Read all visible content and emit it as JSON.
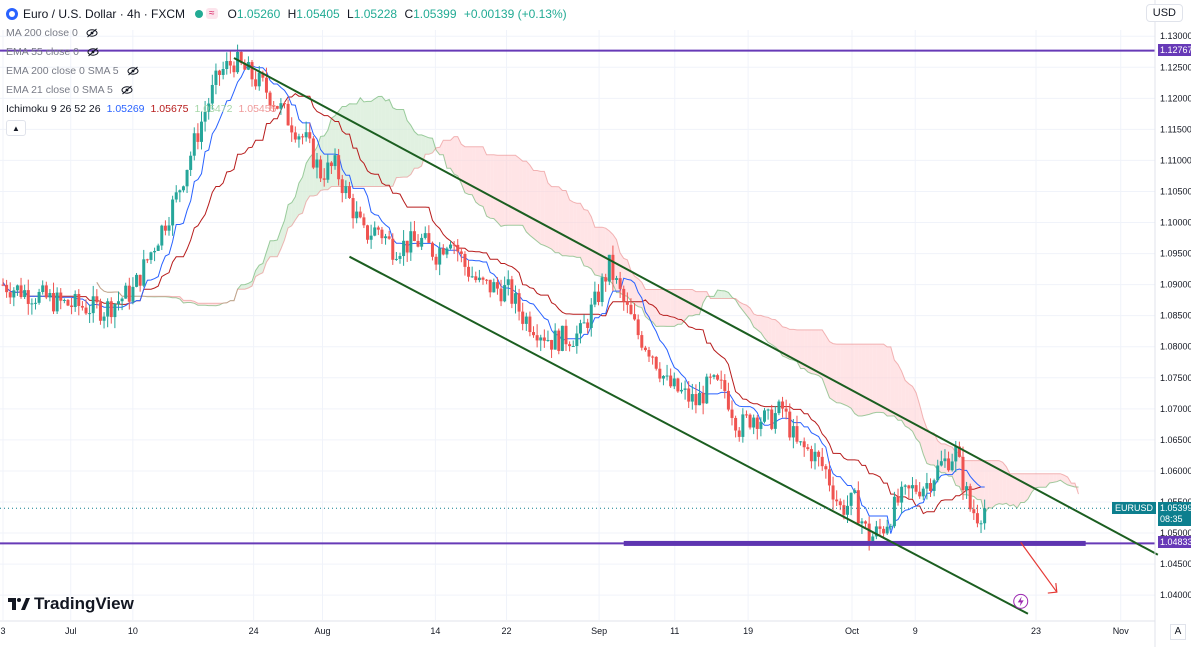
{
  "header": {
    "symbol_title": "Euro / U.S. Dollar · 4h · FXCM",
    "ohlc": {
      "o_label": "O",
      "o": "1.05260",
      "h_label": "H",
      "h": "1.05405",
      "l_label": "L",
      "l": "1.05228",
      "c_label": "C",
      "c": "1.05399",
      "change": "+0.00139 (+0.13%)"
    }
  },
  "indicators": {
    "ma200": "MA 200 close 0",
    "ema55": "EMA 55 close 0",
    "ema200": "EMA 200 close 0 SMA 5",
    "ema21": "EMA 21 close 0 SMA 5",
    "ichimoku": {
      "label": "Ichimoku 9 26 52 26",
      "values": [
        "1.05269",
        "1.05675",
        "1.05472",
        "1.05455"
      ]
    }
  },
  "currency_button": "USD",
  "brand": "TradingView",
  "symbol_badge": "EURUSD",
  "a_button": "A",
  "colors": {
    "tenkan": "#2962ff",
    "kijun": "#b71c1c",
    "span_a": "#43a047",
    "span_b": "#e57373",
    "cloud_bull": "#c8e6c9",
    "cloud_bear": "#ffcdd2",
    "up_candle": "#26a69a",
    "down_candle": "#ef5350",
    "channel": "#1b5e20",
    "horizontal": "#673ab7",
    "arrow": "#e53935"
  },
  "chart_data": {
    "type": "candlestick",
    "instrument": "EURUSD",
    "timeframe": "4h",
    "ylim": [
      1.036,
      1.131
    ],
    "y_ticks": [
      "1.13000",
      "1.12500",
      "1.12000",
      "1.11500",
      "1.11000",
      "1.10500",
      "1.10000",
      "1.09500",
      "1.09000",
      "1.08500",
      "1.08000",
      "1.07500",
      "1.07000",
      "1.06500",
      "1.06000",
      "1.05500",
      "1.05000",
      "1.04500",
      "1.04000"
    ],
    "x_ticks": [
      "3",
      "Jul",
      "10",
      "24",
      "Aug",
      "14",
      "22",
      "Sep",
      "11",
      "19",
      "Oct",
      "9",
      "23",
      "Nov"
    ],
    "price_path": [
      [
        0,
        1.09
      ],
      [
        4,
        1.087
      ],
      [
        7,
        1.086
      ],
      [
        9,
        1.089
      ],
      [
        10,
        1.094
      ],
      [
        12,
        1.104
      ],
      [
        14,
        1.118
      ],
      [
        15,
        1.124
      ],
      [
        16,
        1.126
      ],
      [
        18,
        1.122
      ],
      [
        19,
        1.119
      ],
      [
        21,
        1.113
      ],
      [
        22,
        1.108
      ],
      [
        23,
        1.109
      ],
      [
        25,
        1.098
      ],
      [
        26,
        1.099
      ],
      [
        27,
        1.096
      ],
      [
        29,
        1.097
      ],
      [
        30,
        1.095
      ],
      [
        31,
        1.098
      ],
      [
        32,
        1.093
      ],
      [
        33,
        1.09
      ],
      [
        35,
        1.089
      ],
      [
        36,
        1.085
      ],
      [
        38,
        1.081
      ],
      [
        40,
        1.082
      ],
      [
        41,
        1.087
      ],
      [
        42,
        1.093
      ],
      [
        43,
        1.087
      ],
      [
        44,
        1.082
      ],
      [
        45,
        1.079
      ],
      [
        46,
        1.074
      ],
      [
        48,
        1.071
      ],
      [
        49,
        1.074
      ],
      [
        50,
        1.073
      ],
      [
        51,
        1.067
      ],
      [
        52,
        1.069
      ],
      [
        53,
        1.068
      ],
      [
        54,
        1.07
      ],
      [
        55,
        1.064
      ],
      [
        56,
        1.063
      ],
      [
        57,
        1.06
      ],
      [
        58,
        1.054
      ],
      [
        59,
        1.055
      ],
      [
        60,
        1.049
      ],
      [
        61,
        1.051
      ],
      [
        62,
        1.055
      ],
      [
        63,
        1.057
      ],
      [
        64,
        1.058
      ],
      [
        65,
        1.061
      ],
      [
        66,
        1.063
      ],
      [
        67,
        1.054
      ],
      [
        67.5,
        1.053
      ],
      [
        68,
        1.054
      ]
    ],
    "series": [
      {
        "name": "Tenkan",
        "value": 1.05269
      },
      {
        "name": "Kijun",
        "value": 1.05675
      },
      {
        "name": "Span A",
        "value": 1.05472
      },
      {
        "name": "Span B",
        "value": 1.05455
      }
    ],
    "current_price": 1.05399,
    "countdown": "08:35",
    "horizontal_levels": [
      {
        "price": 1.12767,
        "label": "1.12767"
      },
      {
        "price": 1.04833,
        "label": "1.04833"
      }
    ],
    "channel": {
      "upper": [
        [
          16,
          1.1265
        ],
        [
          80,
          1.0465
        ]
      ],
      "lower": [
        [
          24,
          1.0945
        ],
        [
          71,
          1.037
        ]
      ]
    },
    "support_zone": {
      "start": 43,
      "end": 75,
      "price": 1.04833
    },
    "forecast_arrow": {
      "from": [
        70.5,
        1.0485
      ],
      "to": [
        73,
        1.0405
      ]
    }
  }
}
